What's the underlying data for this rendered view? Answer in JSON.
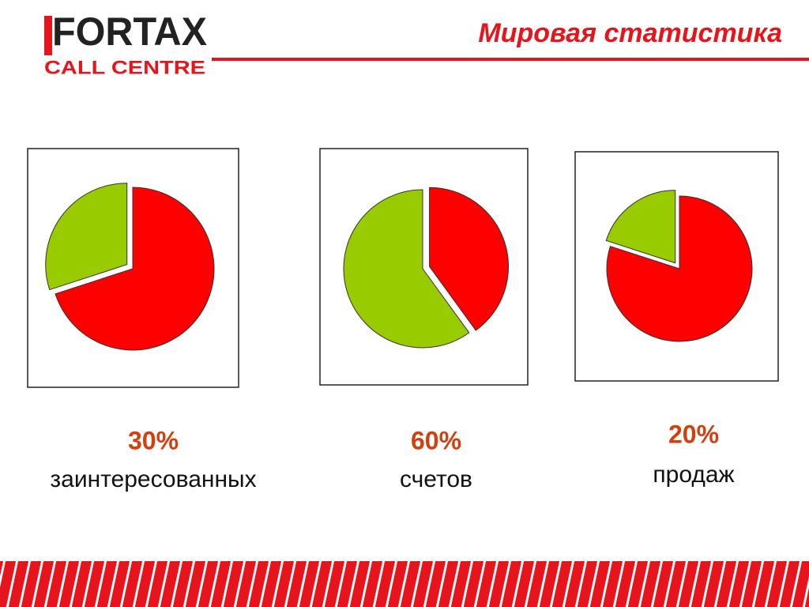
{
  "logo": {
    "top": "FORTAX",
    "bottom": "CALL CENTRE"
  },
  "title": "Мировая статистика",
  "chart_data": [
    {
      "type": "pie",
      "values": [
        30,
        70
      ],
      "value_labels": [
        "30%",
        null
      ],
      "colors": [
        "#99cc00",
        "#ff0000"
      ],
      "caption": "заинтересованных"
    },
    {
      "type": "pie",
      "values": [
        60,
        40
      ],
      "value_labels": [
        "60%",
        null
      ],
      "colors": [
        "#99cc00",
        "#ff0000"
      ],
      "caption": "счетов"
    },
    {
      "type": "pie",
      "values": [
        20,
        80
      ],
      "value_labels": [
        "20%",
        null
      ],
      "colors": [
        "#99cc00",
        "#ff0000"
      ],
      "caption": "продаж"
    }
  ]
}
